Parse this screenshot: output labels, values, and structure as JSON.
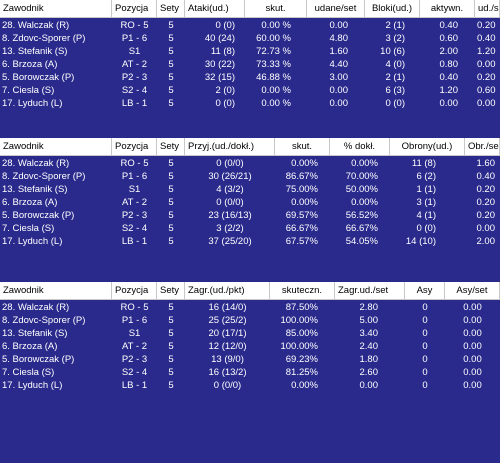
{
  "tables": [
    {
      "headers": [
        "Zawodnik",
        "Pozycja",
        "Sety",
        "Ataki(ud.)",
        "skut.",
        "udane/set",
        "Bloki(ud.)",
        "aktywn.",
        "ud./se"
      ],
      "rows": [
        [
          "28. Walczak (R)",
          "RO - 5",
          "5",
          "0 (0)",
          "0.00 %",
          "0.00",
          "2 (1)",
          "0.40",
          "0.20"
        ],
        [
          "8. Zdovc-Sporer (P)",
          "P1 - 6",
          "5",
          "40 (24)",
          "60.00 %",
          "4.80",
          "3 (2)",
          "0.60",
          "0.40"
        ],
        [
          "13. Stefanik (S)",
          "S1",
          "5",
          "11 (8)",
          "72.73 %",
          "1.60",
          "10 (6)",
          "2.00",
          "1.20"
        ],
        [
          "6. Brzoza (A)",
          "AT - 2",
          "5",
          "30 (22)",
          "73.33 %",
          "4.40",
          "4 (0)",
          "0.80",
          "0.00"
        ],
        [
          "5. Borowczak (P)",
          "P2 - 3",
          "5",
          "32 (15)",
          "46.88 %",
          "3.00",
          "2 (1)",
          "0.40",
          "0.20"
        ],
        [
          "7. Ciesla (S)",
          "S2 - 4",
          "5",
          "2 (0)",
          "0.00 %",
          "0.00",
          "6 (3)",
          "1.20",
          "0.60"
        ],
        [
          "17. Lyduch (L)",
          "LB - 1",
          "5",
          "0 (0)",
          "0.00 %",
          "0.00",
          "0 (0)",
          "0.00",
          "0.00"
        ]
      ]
    },
    {
      "headers": [
        "Zawodnik",
        "Pozycja",
        "Sety",
        "Przyj.(ud./dokł.)",
        "skut.",
        "% dokł.",
        "Obrony(ud.)",
        "Obr./se"
      ],
      "rows": [
        [
          "28. Walczak (R)",
          "RO - 5",
          "5",
          "0 (0/0)",
          "0.00%",
          "0.00%",
          "11 (8)",
          "1.60"
        ],
        [
          "8. Zdovc-Sporer (P)",
          "P1 - 6",
          "5",
          "30 (26/21)",
          "86.67%",
          "70.00%",
          "6 (2)",
          "0.40"
        ],
        [
          "13. Stefanik (S)",
          "S1",
          "5",
          "4 (3/2)",
          "75.00%",
          "50.00%",
          "1 (1)",
          "0.20"
        ],
        [
          "6. Brzoza (A)",
          "AT - 2",
          "5",
          "0 (0/0)",
          "0.00%",
          "0.00%",
          "3 (1)",
          "0.20"
        ],
        [
          "5. Borowczak (P)",
          "P2 - 3",
          "5",
          "23 (16/13)",
          "69.57%",
          "56.52%",
          "4 (1)",
          "0.20"
        ],
        [
          "7. Ciesla (S)",
          "S2 - 4",
          "5",
          "3 (2/2)",
          "66.67%",
          "66.67%",
          "0 (0)",
          "0.00"
        ],
        [
          "17. Lyduch (L)",
          "LB - 1",
          "5",
          "37 (25/20)",
          "67.57%",
          "54.05%",
          "14 (10)",
          "2.00"
        ]
      ]
    },
    {
      "headers": [
        "Zawodnik",
        "Pozycja",
        "Sety",
        "Zagr.(ud./pkt)",
        "skuteczn.",
        "Zagr.ud./set",
        "Asy",
        "Asy/set"
      ],
      "rows": [
        [
          "28. Walczak (R)",
          "RO - 5",
          "5",
          "16 (14/0)",
          "87.50%",
          "2.80",
          "0",
          "0.00"
        ],
        [
          "8. Zdovc-Sporer (P)",
          "P1 - 6",
          "5",
          "25 (25/2)",
          "100.00%",
          "5.00",
          "0",
          "0.00"
        ],
        [
          "13. Stefanik (S)",
          "S1",
          "5",
          "20 (17/1)",
          "85.00%",
          "3.40",
          "0",
          "0.00"
        ],
        [
          "6. Brzoza (A)",
          "AT - 2",
          "5",
          "12 (12/0)",
          "100.00%",
          "2.40",
          "0",
          "0.00"
        ],
        [
          "5. Borowczak (P)",
          "P2 - 3",
          "5",
          "13 (9/0)",
          "69.23%",
          "1.80",
          "0",
          "0.00"
        ],
        [
          "7. Ciesla (S)",
          "S2 - 4",
          "5",
          "16 (13/2)",
          "81.25%",
          "2.60",
          "0",
          "0.00"
        ],
        [
          "17. Lyduch (L)",
          "LB - 1",
          "5",
          "0 (0/0)",
          "0.00%",
          "0.00",
          "0",
          "0.00"
        ]
      ]
    }
  ]
}
